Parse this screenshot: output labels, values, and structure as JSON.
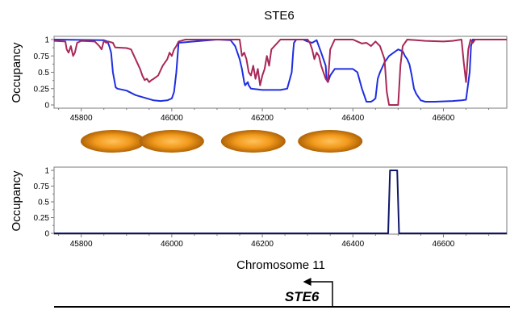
{
  "chart_data": [
    {
      "type": "line",
      "title": "STE6",
      "ylabel": "Occupancy",
      "xlabel": "",
      "xlim": [
        45740,
        46740
      ],
      "ylim": [
        0,
        1
      ],
      "xticks": [
        45800,
        46000,
        46200,
        46400,
        46600
      ],
      "yticks": [
        0,
        0.25,
        0.5,
        0.75,
        1
      ],
      "ytick_labels": [
        "0",
        "0.25",
        "0.5",
        "0.75",
        "1"
      ],
      "series": [
        {
          "name": "blue",
          "color": "#1f2fe0",
          "x": [
            45740,
            45850,
            45858,
            45862,
            45866,
            45870,
            45876,
            45880,
            45900,
            45920,
            45960,
            45975,
            45990,
            46000,
            46005,
            46010,
            46015,
            46100,
            46130,
            46140,
            46145,
            46150,
            46155,
            46160,
            46162,
            46168,
            46170,
            46175,
            46200,
            46240,
            46255,
            46265,
            46268,
            46270,
            46275,
            46290,
            46300,
            46310,
            46320,
            46330,
            46335,
            46340,
            46342,
            46345,
            46350,
            46360,
            46380,
            46400,
            46410,
            46420,
            46430,
            46440,
            46445,
            46450,
            46455,
            46460,
            46470,
            46480,
            46490,
            46500,
            46510,
            46515,
            46520,
            46525,
            46530,
            46535,
            46540,
            46545,
            46550,
            46560,
            46580,
            46620,
            46640,
            46650,
            46658,
            46661,
            46665,
            46740
          ],
          "y": [
            1,
            0.99,
            0.97,
            0.9,
            0.8,
            0.5,
            0.27,
            0.25,
            0.22,
            0.15,
            0.07,
            0.06,
            0.07,
            0.1,
            0.2,
            0.5,
            0.95,
            1,
            0.99,
            0.9,
            0.8,
            0.7,
            0.55,
            0.35,
            0.3,
            0.35,
            0.3,
            0.25,
            0.23,
            0.23,
            0.25,
            0.5,
            0.8,
            0.95,
            1,
            1,
            0.97,
            0.95,
            0.99,
            0.8,
            0.7,
            0.6,
            0.4,
            0.35,
            0.45,
            0.55,
            0.55,
            0.55,
            0.5,
            0.25,
            0.05,
            0.05,
            0.07,
            0.1,
            0.4,
            0.5,
            0.65,
            0.75,
            0.8,
            0.85,
            0.82,
            0.75,
            0.7,
            0.62,
            0.45,
            0.25,
            0.17,
            0.12,
            0.07,
            0.05,
            0.05,
            0.06,
            0.07,
            0.08,
            0.5,
            0.9,
            1,
            1
          ]
        },
        {
          "name": "red",
          "color": "#a82858",
          "x": [
            45740,
            45765,
            45768,
            45772,
            45777,
            45782,
            45786,
            45791,
            45800,
            45830,
            45840,
            45845,
            45850,
            45855,
            45860,
            45870,
            45875,
            45900,
            45910,
            45920,
            45930,
            45935,
            45940,
            45945,
            45950,
            45955,
            45960,
            45970,
            45980,
            45990,
            45995,
            46000,
            46005,
            46010,
            46015,
            46030,
            46150,
            46155,
            46160,
            46165,
            46170,
            46175,
            46180,
            46185,
            46190,
            46195,
            46200,
            46205,
            46210,
            46215,
            46220,
            46240,
            46300,
            46305,
            46310,
            46315,
            46320,
            46325,
            46330,
            46340,
            46345,
            46350,
            46360,
            46400,
            46410,
            46420,
            46430,
            46440,
            46450,
            46460,
            46470,
            46475,
            46480,
            46490,
            46500,
            46505,
            46510,
            46520,
            46540,
            46560,
            46600,
            46620,
            46640,
            46645,
            46650,
            46655,
            46660,
            46665,
            46670,
            46740
          ],
          "y": [
            0.98,
            0.97,
            0.85,
            0.8,
            0.9,
            0.75,
            0.8,
            0.95,
            0.98,
            0.97,
            0.9,
            0.85,
            0.98,
            0.95,
            0.97,
            0.95,
            0.88,
            0.87,
            0.85,
            0.7,
            0.55,
            0.45,
            0.38,
            0.4,
            0.35,
            0.38,
            0.4,
            0.45,
            0.6,
            0.7,
            0.8,
            0.75,
            0.85,
            0.9,
            0.97,
            1,
            1,
            0.75,
            0.8,
            0.7,
            0.5,
            0.45,
            0.6,
            0.4,
            0.55,
            0.3,
            0.45,
            0.55,
            0.75,
            0.6,
            0.85,
            1,
            1,
            0.95,
            0.85,
            0.7,
            0.8,
            0.75,
            0.6,
            0.4,
            0.35,
            0.85,
            1,
            1,
            0.97,
            0.94,
            0.95,
            0.9,
            0.97,
            0.9,
            0.7,
            0.2,
            0,
            0,
            0,
            0.6,
            0.9,
            1,
            0.99,
            0.98,
            0.97,
            0.98,
            1,
            0.65,
            0.35,
            0.85,
            1,
            0.95,
            1,
            1
          ]
        }
      ]
    },
    {
      "type": "line",
      "title": "",
      "ylabel": "Occupancy",
      "xlabel": "Chromosome 11",
      "xlim": [
        45740,
        46740
      ],
      "ylim": [
        0,
        1
      ],
      "xticks": [
        45800,
        46000,
        46200,
        46400,
        46600
      ],
      "yticks": [
        0,
        0.25,
        0.5,
        0.75,
        1
      ],
      "ytick_labels": [
        "0",
        "0.25",
        "0.5",
        "0.75",
        "1"
      ],
      "series": [
        {
          "name": "navy",
          "color": "#0f1668",
          "x": [
            45740,
            46478,
            46482,
            46498,
            46502,
            46740
          ],
          "y": [
            0,
            0,
            1,
            1,
            0,
            0
          ]
        }
      ]
    }
  ],
  "nucleosomes": {
    "centers": [
      45870,
      46000,
      46180,
      46350
    ],
    "colors": {
      "center": "#ffc25c",
      "mid": "#f29a1c",
      "edge": "#b06306"
    }
  },
  "gene": {
    "name": "STE6",
    "tss": 46355,
    "arrow_end": 46290,
    "direction": "left",
    "line_from": 45740,
    "line_to": 46750
  },
  "colors": {
    "frame": "#7a7a7a",
    "tick_label": "#000000",
    "text": "#000000"
  }
}
